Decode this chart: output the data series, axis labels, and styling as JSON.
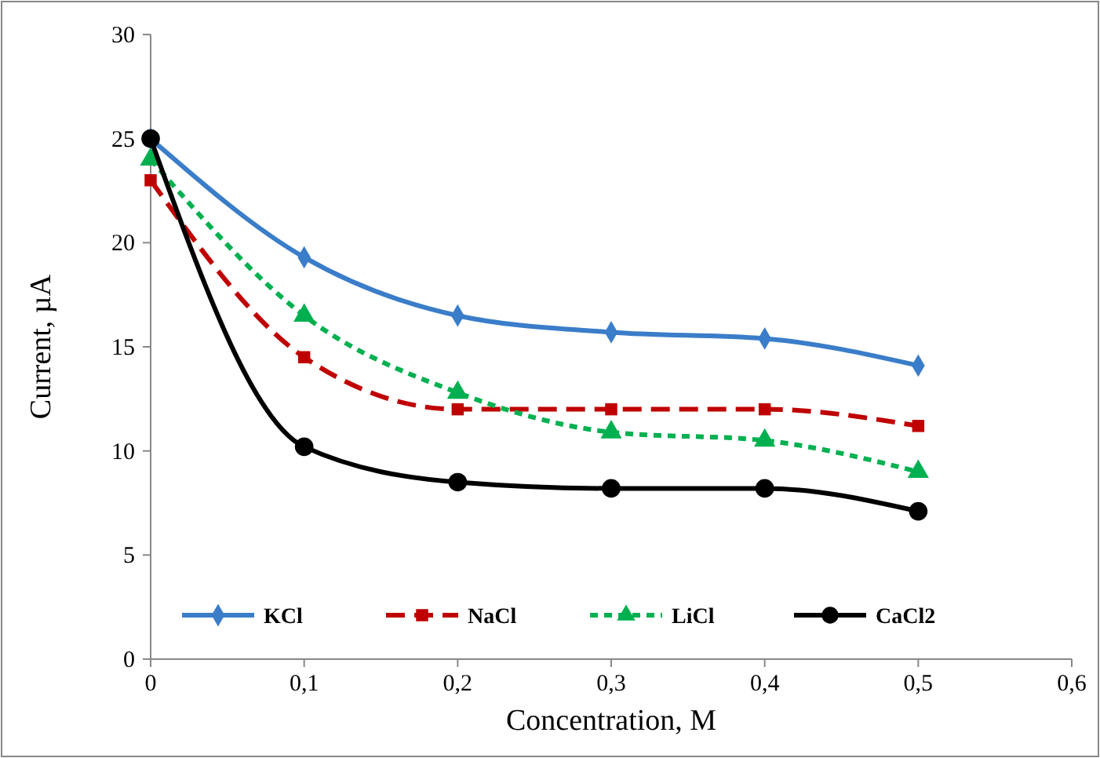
{
  "chart_data": {
    "type": "line",
    "xlabel": "Concentration, M",
    "ylabel": "Current, µA",
    "x": [
      0,
      0.1,
      0.2,
      0.3,
      0.4,
      0.5
    ],
    "xlim": [
      0,
      0.6
    ],
    "xticks": [
      0,
      {
        "value": 0.1,
        "label": "0,1"
      },
      {
        "value": 0.2,
        "label": "0,2"
      },
      {
        "value": 0.3,
        "label": "0,3"
      },
      {
        "value": 0.4,
        "label": "0,4"
      },
      {
        "value": 0.5,
        "label": "0,5"
      },
      {
        "value": 0.6,
        "label": "0,6"
      }
    ],
    "ylim": [
      0,
      30
    ],
    "yticks": [
      0,
      5,
      10,
      15,
      20,
      25,
      30
    ],
    "grid": false,
    "legend": "bottom",
    "series": [
      {
        "name": "KCl",
        "color": "#3a7dc9",
        "values": [
          25,
          19.3,
          16.5,
          15.7,
          15.4,
          14.1
        ],
        "marker": "diamond",
        "line_style": "solid"
      },
      {
        "name": "NaCl",
        "color": "#c00000",
        "values": [
          23,
          14.5,
          12,
          12,
          12,
          11.2
        ],
        "marker": "square",
        "line_style": "dashed"
      },
      {
        "name": "LiCl",
        "color": "#00b050",
        "values": [
          24,
          16.5,
          12.8,
          10.9,
          10.5,
          9
        ],
        "marker": "triangle",
        "line_style": "dotted"
      },
      {
        "name": "CaCl2",
        "color": "#000000",
        "values": [
          25,
          10.2,
          8.5,
          8.2,
          8.2,
          7.1
        ],
        "marker": "circle",
        "line_style": "solid"
      }
    ]
  }
}
